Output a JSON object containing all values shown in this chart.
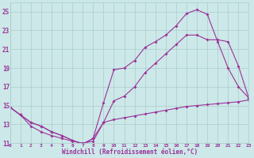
{
  "xlabel": "Windchill (Refroidissement éolien,°C)",
  "bg_color": "#cce8e8",
  "grid_color": "#aacccc",
  "line_color": "#993399",
  "xmin": 0,
  "xmax": 23,
  "ymin": 11,
  "ymax": 26,
  "yticks": [
    11,
    13,
    15,
    17,
    19,
    21,
    23,
    25
  ],
  "xticks": [
    0,
    1,
    2,
    3,
    4,
    5,
    6,
    7,
    8,
    9,
    10,
    11,
    12,
    13,
    14,
    15,
    16,
    17,
    18,
    19,
    20,
    21,
    22,
    23
  ],
  "line1_x": [
    0,
    1,
    2,
    3,
    4,
    5,
    6,
    7,
    8,
    9,
    10,
    11,
    12,
    13,
    14,
    15,
    16,
    17,
    18,
    19,
    20,
    21,
    22,
    23
  ],
  "line1_y": [
    14.8,
    14.0,
    13.2,
    12.8,
    12.2,
    11.8,
    11.3,
    10.9,
    11.5,
    15.3,
    18.8,
    19.0,
    19.8,
    21.2,
    21.8,
    22.5,
    23.5,
    24.8,
    25.2,
    24.7,
    21.8,
    19.0,
    17.0,
    15.8
  ],
  "line2_x": [
    0,
    1,
    2,
    3,
    4,
    5,
    6,
    7,
    8,
    9,
    10,
    11,
    12,
    13,
    14,
    15,
    16,
    17,
    18,
    19,
    20,
    21,
    22,
    23
  ],
  "line2_y": [
    14.8,
    14.0,
    13.2,
    12.8,
    12.2,
    11.8,
    11.3,
    10.9,
    11.5,
    13.2,
    15.5,
    16.0,
    17.0,
    18.5,
    19.5,
    20.5,
    21.5,
    22.5,
    22.5,
    22.0,
    22.0,
    21.8,
    19.2,
    15.8
  ],
  "line3_x": [
    0,
    1,
    2,
    3,
    4,
    5,
    6,
    7,
    8,
    9,
    10,
    11,
    12,
    13,
    14,
    15,
    16,
    17,
    18,
    19,
    20,
    21,
    22,
    23
  ],
  "line3_y": [
    14.8,
    14.0,
    12.8,
    12.2,
    11.8,
    11.5,
    11.2,
    11.0,
    11.2,
    13.2,
    13.5,
    13.7,
    13.9,
    14.1,
    14.3,
    14.5,
    14.7,
    14.9,
    15.0,
    15.1,
    15.2,
    15.3,
    15.4,
    15.6
  ]
}
